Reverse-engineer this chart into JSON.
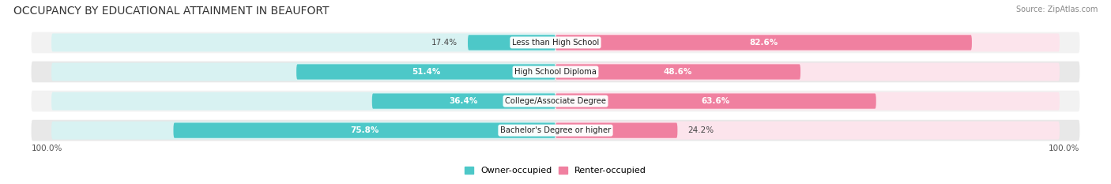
{
  "title": "OCCUPANCY BY EDUCATIONAL ATTAINMENT IN BEAUFORT",
  "source": "Source: ZipAtlas.com",
  "categories": [
    "Less than High School",
    "High School Diploma",
    "College/Associate Degree",
    "Bachelor's Degree or higher"
  ],
  "owner_pct": [
    17.4,
    51.4,
    36.4,
    75.8
  ],
  "renter_pct": [
    82.6,
    48.6,
    63.6,
    24.2
  ],
  "owner_color": "#4dc8c8",
  "renter_color": "#f080a0",
  "owner_color_bg": "#d8f2f2",
  "renter_color_bg": "#fce4ec",
  "row_bg_even": "#f2f2f2",
  "row_bg_odd": "#e8e8e8",
  "title_fontsize": 10,
  "legend_fontsize": 8,
  "bar_height": 0.52,
  "bg_bar_height": 0.62,
  "x_left_label": "100.0%",
  "x_right_label": "100.0%"
}
